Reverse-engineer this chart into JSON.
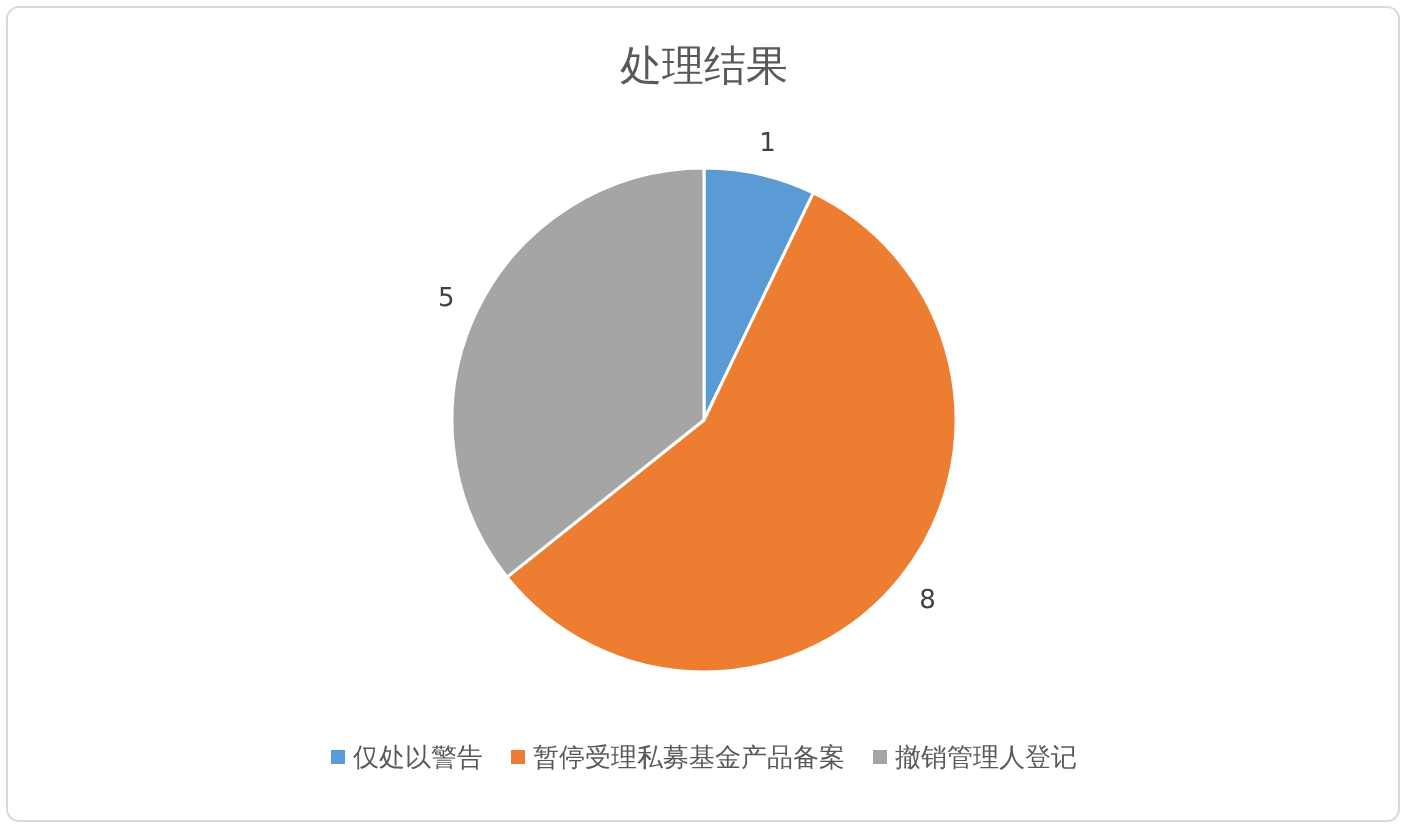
{
  "chart_data": {
    "type": "pie",
    "title": "处理结果",
    "categories": [
      "仅处以警告",
      "暂停受理私募基金产品备案",
      "撤销管理人登记"
    ],
    "values": [
      1,
      8,
      5
    ],
    "colors": [
      "#5b9bd5",
      "#ed7d31",
      "#a5a5a5"
    ],
    "data_labels": true,
    "legend": "bottom"
  }
}
